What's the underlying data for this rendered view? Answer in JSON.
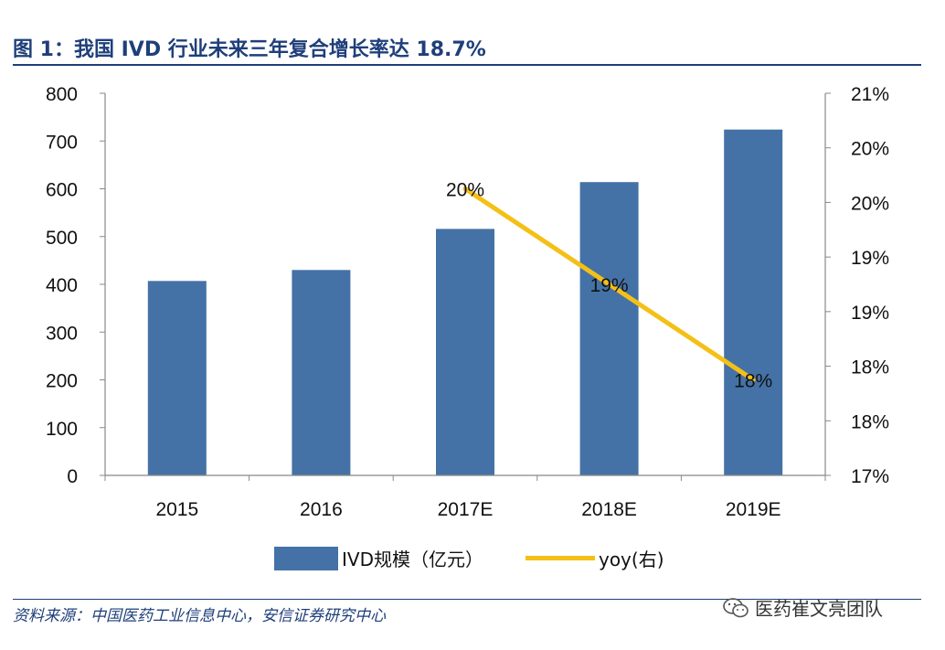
{
  "title": "图 1：我国 IVD 行业未来三年复合增长率达 18.7%",
  "source": "资料来源：中国医药工业信息中心，安信证券研究中心",
  "watermark": "医药崔文亮团队",
  "colors": {
    "bar": "#4472a6",
    "line": "#f5c016",
    "title": "#1f3f7a"
  },
  "chart_data": {
    "type": "bar",
    "categories": [
      "2015",
      "2016",
      "2017E",
      "2018E",
      "2019E"
    ],
    "series": [
      {
        "name": "IVD规模（亿元）",
        "type": "bar",
        "axis": "left",
        "values": [
          407,
          430,
          516,
          614,
          724
        ]
      },
      {
        "name": "yoy(右)",
        "type": "line",
        "axis": "right",
        "values": [
          null,
          null,
          0.2,
          0.19,
          0.18
        ],
        "data_labels": [
          "",
          "",
          "20%",
          "19%",
          "18%"
        ]
      }
    ],
    "y_left": {
      "ylim": [
        0,
        800
      ],
      "ticks": [
        "0",
        "100",
        "200",
        "300",
        "400",
        "500",
        "600",
        "700",
        "800"
      ]
    },
    "y_right": {
      "ylim": [
        0.17,
        0.21
      ],
      "ticks": [
        "17%",
        "18%",
        "18%",
        "19%",
        "19%",
        "20%",
        "20%",
        "21%"
      ]
    },
    "grid": false,
    "legend": "bottom"
  }
}
